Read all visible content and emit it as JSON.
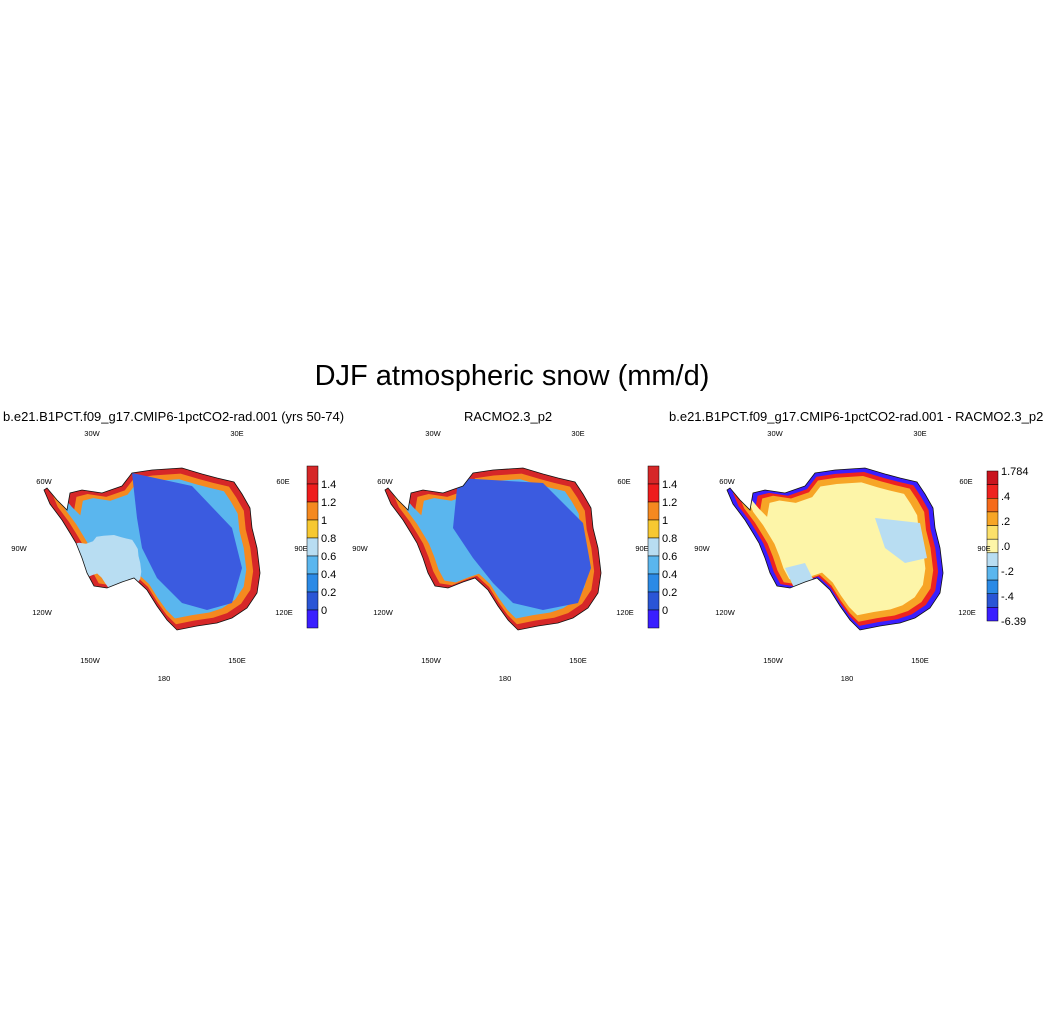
{
  "main_title": "DJF atmospheric snow (mm/d)",
  "panels": [
    {
      "title": "b.e21.B1PCT.f09_g17.CMIP6-1pctCO2-rad.001 (yrs 50-74)",
      "colorbar": {
        "labels": [
          "1.4",
          "1.2",
          "1",
          "0.8",
          "0.6",
          "0.4",
          "0.2",
          "0"
        ],
        "colors": [
          "#d62728",
          "#ee1c1c",
          "#f5891f",
          "#f7c831",
          "#b8ddf2",
          "#5ab6ee",
          "#2b8ae6",
          "#2a55d6",
          "#3a1fff"
        ]
      }
    },
    {
      "title": "RACMO2.3_p2",
      "colorbar": {
        "labels": [
          "1.4",
          "1.2",
          "1",
          "0.8",
          "0.6",
          "0.4",
          "0.2",
          "0"
        ],
        "colors": [
          "#d62728",
          "#ee1c1c",
          "#f5891f",
          "#f7c831",
          "#b8ddf2",
          "#5ab6ee",
          "#2b8ae6",
          "#2a55d6",
          "#3a1fff"
        ]
      }
    },
    {
      "title": "b.e21.B1PCT.f09_g17.CMIP6-1pctCO2-rad.001 - RACMO2.3_p2",
      "colorbar": {
        "labels": [
          "1.784",
          ".4",
          ".2",
          ".0",
          "-.2",
          "-.4",
          "-6.39"
        ],
        "colors": [
          "#c9141e",
          "#ee2320",
          "#f56a1a",
          "#f7a526",
          "#fbe06a",
          "#fdf5a8",
          "#b8ddf2",
          "#5ab6ee",
          "#2b8ae6",
          "#2a55d6",
          "#3a1fff"
        ]
      }
    }
  ],
  "graticule_labels": [
    "30W",
    "30E",
    "60W",
    "60E",
    "90W",
    "90E",
    "120W",
    "120E",
    "150W",
    "150E",
    "180"
  ]
}
